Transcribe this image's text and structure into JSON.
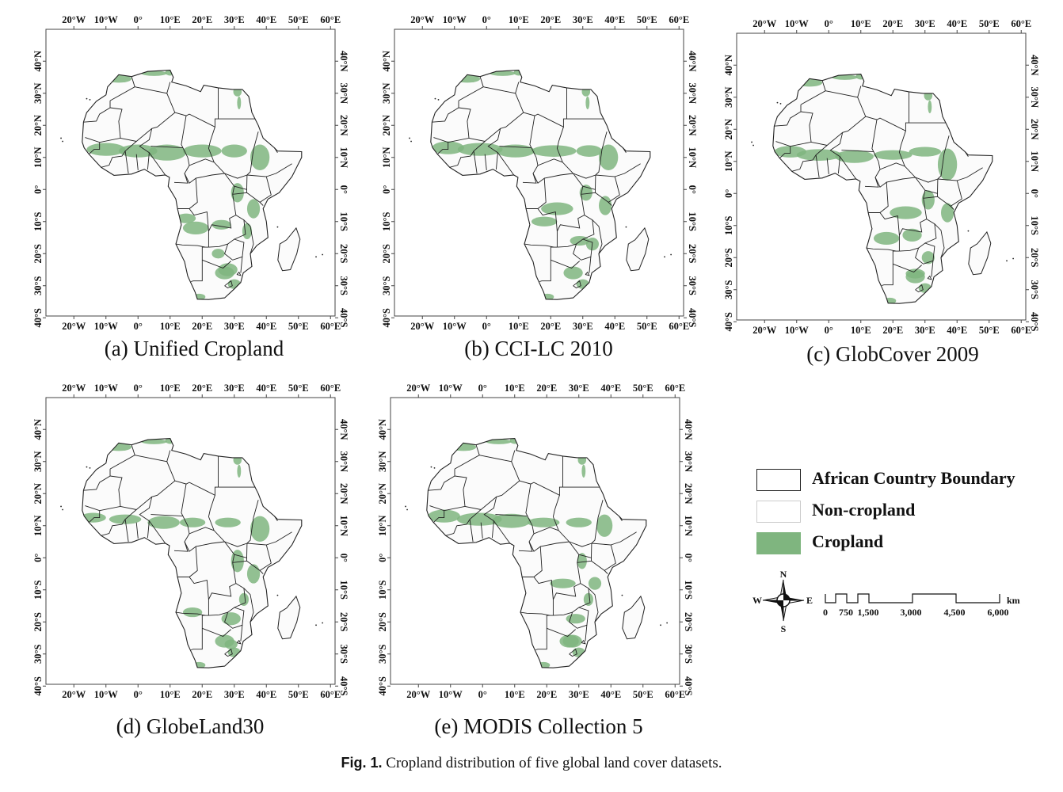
{
  "panels": [
    {
      "id": "a",
      "caption": "(a) Unified Cropland"
    },
    {
      "id": "b",
      "caption": "(b) CCI-LC 2010"
    },
    {
      "id": "c",
      "caption": "(c) GlobCover 2009"
    },
    {
      "id": "d",
      "caption": "(d) GlobeLand30"
    },
    {
      "id": "e",
      "caption": "(e) MODIS Collection 5"
    }
  ],
  "lon_ticks": [
    "20°W",
    "10°W",
    "0°",
    "10°E",
    "20°E",
    "30°E",
    "40°E",
    "50°E",
    "60°E"
  ],
  "lat_ticks": [
    "40°N",
    "30°N",
    "20°N",
    "10°N",
    "0°",
    "10°S",
    "20°S",
    "30°S",
    "40°S"
  ],
  "legend": {
    "boundary_label": "African Country Boundary",
    "noncrop_label": "Non-cropland",
    "crop_label": "Cropland"
  },
  "compass": {
    "n": "N",
    "s": "S",
    "e": "E",
    "w": "W"
  },
  "scale": {
    "labels": [
      "0",
      "750",
      "1,500",
      "3,000",
      "4,500",
      "6,000"
    ],
    "unit": "km"
  },
  "colors": {
    "cropland": "#7fb57f",
    "non_cropland": "#ffffff",
    "boundary": "#222222"
  },
  "figure_caption": {
    "label": "Fig. 1.",
    "text": "Cropland distribution of five global land cover datasets."
  }
}
